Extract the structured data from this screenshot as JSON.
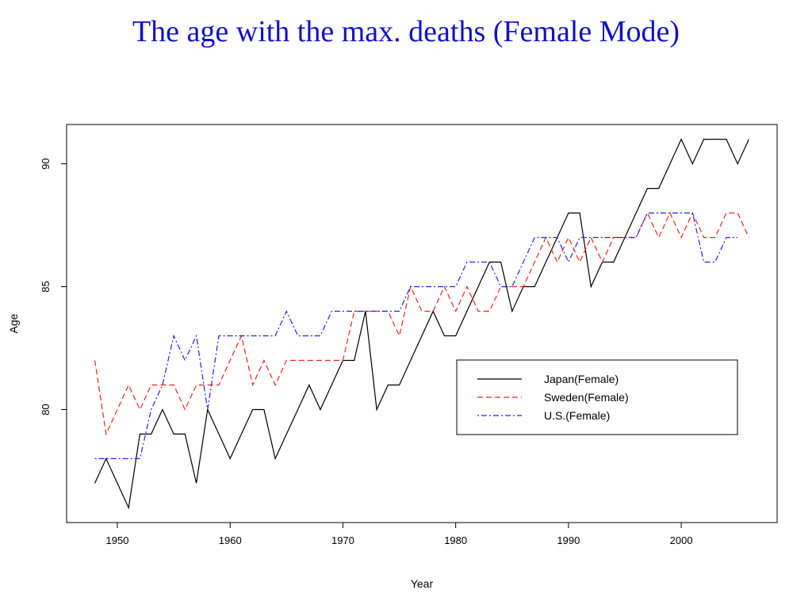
{
  "slide": {
    "title": "The age with the max. deaths (Female Mode)"
  },
  "chart_data": {
    "type": "line",
    "xlabel": "Year",
    "ylabel": "Age",
    "xlim": [
      1945.5,
      2008.5
    ],
    "ylim": [
      75.4,
      91.6
    ],
    "xticks": [
      1950,
      1960,
      1970,
      1980,
      1990,
      2000
    ],
    "yticks": [
      80,
      85,
      90
    ],
    "legend_position": "lower-right",
    "grid": false,
    "x": [
      1948,
      1949,
      1950,
      1951,
      1952,
      1953,
      1954,
      1955,
      1956,
      1957,
      1958,
      1959,
      1960,
      1961,
      1962,
      1963,
      1964,
      1965,
      1966,
      1967,
      1968,
      1969,
      1970,
      1971,
      1972,
      1973,
      1974,
      1975,
      1976,
      1977,
      1978,
      1979,
      1980,
      1981,
      1982,
      1983,
      1984,
      1985,
      1986,
      1987,
      1988,
      1989,
      1990,
      1991,
      1992,
      1993,
      1994,
      1995,
      1996,
      1997,
      1998,
      1999,
      2000,
      2001,
      2002,
      2003,
      2004,
      2005,
      2006
    ],
    "series": [
      {
        "name": "Japan(Female)",
        "color": "#000000",
        "dash": "solid",
        "values": [
          77,
          78,
          77,
          76,
          79,
          79,
          80,
          79,
          79,
          77,
          80,
          79,
          78,
          79,
          80,
          80,
          78,
          79,
          80,
          81,
          80,
          81,
          82,
          82,
          84,
          80,
          81,
          81,
          82,
          83,
          84,
          83,
          83,
          84,
          85,
          86,
          86,
          84,
          85,
          85,
          86,
          87,
          88,
          88,
          85,
          86,
          86,
          87,
          88,
          89,
          89,
          90,
          91,
          90,
          91,
          91,
          91,
          90,
          91
        ]
      },
      {
        "name": "Sweden(Female)",
        "color": "#ee2222",
        "dash": "dashed",
        "values": [
          82,
          79,
          80,
          81,
          80,
          81,
          81,
          81,
          80,
          81,
          81,
          81,
          82,
          83,
          81,
          82,
          81,
          82,
          82,
          82,
          82,
          82,
          82,
          84,
          84,
          84,
          84,
          83,
          85,
          84,
          84,
          85,
          84,
          85,
          84,
          84,
          85,
          85,
          85,
          86,
          87,
          86,
          87,
          86,
          87,
          86,
          87,
          87,
          87,
          88,
          87,
          88,
          87,
          88,
          87,
          87,
          88,
          88,
          87
        ]
      },
      {
        "name": "U.S.(Female)",
        "color": "#2222ee",
        "dash": "dotdash",
        "values": [
          78,
          78,
          78,
          78,
          78,
          80,
          81,
          83,
          82,
          83,
          80,
          83,
          83,
          83,
          83,
          83,
          83,
          84,
          83,
          83,
          83,
          84,
          84,
          84,
          84,
          84,
          84,
          84,
          85,
          85,
          85,
          85,
          85,
          86,
          86,
          86,
          85,
          85,
          86,
          87,
          87,
          87,
          86,
          87,
          87,
          87,
          87,
          87,
          87,
          88,
          88,
          88,
          88,
          88,
          86,
          86,
          87,
          87,
          null
        ]
      }
    ]
  }
}
